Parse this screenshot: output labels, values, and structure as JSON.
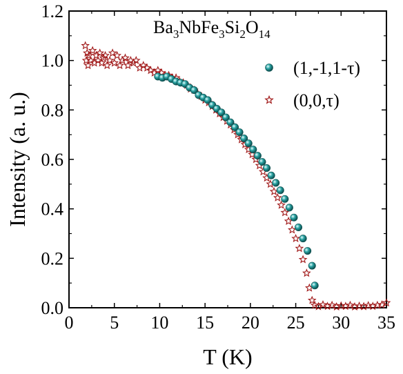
{
  "chart_data": {
    "type": "scatter",
    "title": "",
    "formula_parts": [
      {
        "text": "Ba",
        "sub": false
      },
      {
        "text": "3",
        "sub": true
      },
      {
        "text": "NbFe",
        "sub": false
      },
      {
        "text": "3",
        "sub": true
      },
      {
        "text": "Si",
        "sub": false
      },
      {
        "text": "2",
        "sub": true
      },
      {
        "text": "O",
        "sub": false
      },
      {
        "text": "14",
        "sub": true
      }
    ],
    "xlabel": "T (K)",
    "ylabel": "Intensity (a. u.)",
    "xlim": [
      0,
      35
    ],
    "ylim": [
      0,
      1.2
    ],
    "xticks": [
      0,
      5,
      10,
      15,
      20,
      25,
      30,
      35
    ],
    "xtick_labels": [
      "0",
      "5",
      "10",
      "15",
      "20",
      "25",
      "30",
      "35"
    ],
    "yticks": [
      0.0,
      0.2,
      0.4,
      0.6,
      0.8,
      1.0,
      1.2
    ],
    "ytick_labels": [
      "0.0",
      "0.2",
      "0.4",
      "0.6",
      "0.8",
      "1.0",
      "1.2"
    ],
    "grid": false,
    "legend_position": "top-right",
    "series": [
      {
        "name": "(1,-1,1-τ)",
        "marker": "circle",
        "color": "#1e8a8a",
        "points": [
          [
            9.8,
            0.935
          ],
          [
            10.3,
            0.93
          ],
          [
            10.8,
            0.935
          ],
          [
            11.3,
            0.925
          ],
          [
            11.8,
            0.915
          ],
          [
            12.3,
            0.91
          ],
          [
            12.8,
            0.905
          ],
          [
            13.3,
            0.89
          ],
          [
            13.8,
            0.88
          ],
          [
            14.3,
            0.86
          ],
          [
            14.8,
            0.85
          ],
          [
            15.3,
            0.84
          ],
          [
            15.8,
            0.82
          ],
          [
            16.3,
            0.805
          ],
          [
            16.8,
            0.79
          ],
          [
            17.3,
            0.77
          ],
          [
            17.8,
            0.75
          ],
          [
            18.3,
            0.73
          ],
          [
            18.8,
            0.71
          ],
          [
            19.3,
            0.685
          ],
          [
            19.8,
            0.665
          ],
          [
            20.3,
            0.64
          ],
          [
            20.8,
            0.615
          ],
          [
            21.3,
            0.59
          ],
          [
            21.8,
            0.565
          ],
          [
            22.3,
            0.535
          ],
          [
            22.8,
            0.505
          ],
          [
            23.3,
            0.475
          ],
          [
            23.8,
            0.44
          ],
          [
            24.3,
            0.405
          ],
          [
            24.8,
            0.365
          ],
          [
            25.3,
            0.325
          ],
          [
            25.8,
            0.28
          ],
          [
            26.3,
            0.23
          ],
          [
            26.8,
            0.17
          ],
          [
            27.1,
            0.09
          ]
        ]
      },
      {
        "name": "(0,0,τ)",
        "marker": "star",
        "color": "#a01818",
        "points": [
          [
            1.8,
            1.06
          ],
          [
            1.9,
            1.0
          ],
          [
            2.0,
            1.03
          ],
          [
            2.1,
            0.98
          ],
          [
            2.2,
            1.02
          ],
          [
            2.4,
            1.0
          ],
          [
            2.6,
            1.04
          ],
          [
            2.8,
            0.99
          ],
          [
            3.0,
            1.02
          ],
          [
            3.2,
            1.0
          ],
          [
            3.4,
            1.03
          ],
          [
            3.6,
            0.99
          ],
          [
            3.8,
            1.01
          ],
          [
            4.0,
            1.02
          ],
          [
            4.2,
            0.98
          ],
          [
            4.5,
            1.0
          ],
          [
            4.8,
            1.03
          ],
          [
            5.0,
            0.99
          ],
          [
            5.3,
            1.02
          ],
          [
            5.6,
            0.98
          ],
          [
            5.9,
            1.0
          ],
          [
            6.2,
            1.01
          ],
          [
            6.5,
            0.98
          ],
          [
            6.8,
            1.0
          ],
          [
            7.1,
            0.99
          ],
          [
            7.4,
            1.0
          ],
          [
            7.8,
            0.97
          ],
          [
            8.2,
            0.98
          ],
          [
            8.6,
            0.97
          ],
          [
            9.0,
            0.96
          ],
          [
            9.4,
            0.95
          ],
          [
            9.8,
            0.96
          ],
          [
            10.2,
            0.95
          ],
          [
            10.6,
            0.94
          ],
          [
            11.0,
            0.94
          ],
          [
            11.4,
            0.93
          ],
          [
            11.8,
            0.93
          ],
          [
            12.2,
            0.915
          ],
          [
            12.6,
            0.91
          ],
          [
            13.0,
            0.9
          ],
          [
            13.4,
            0.885
          ],
          [
            13.8,
            0.88
          ],
          [
            14.2,
            0.865
          ],
          [
            14.6,
            0.855
          ],
          [
            15.0,
            0.84
          ],
          [
            15.4,
            0.83
          ],
          [
            15.8,
            0.815
          ],
          [
            16.2,
            0.8
          ],
          [
            16.6,
            0.785
          ],
          [
            17.0,
            0.77
          ],
          [
            17.4,
            0.755
          ],
          [
            17.8,
            0.74
          ],
          [
            18.2,
            0.72
          ],
          [
            18.6,
            0.7
          ],
          [
            19.0,
            0.68
          ],
          [
            19.4,
            0.66
          ],
          [
            19.8,
            0.64
          ],
          [
            20.2,
            0.62
          ],
          [
            20.6,
            0.6
          ],
          [
            21.0,
            0.575
          ],
          [
            21.4,
            0.55
          ],
          [
            21.8,
            0.525
          ],
          [
            22.2,
            0.5
          ],
          [
            22.6,
            0.47
          ],
          [
            23.0,
            0.445
          ],
          [
            23.4,
            0.415
          ],
          [
            23.8,
            0.385
          ],
          [
            24.2,
            0.35
          ],
          [
            24.6,
            0.315
          ],
          [
            25.0,
            0.28
          ],
          [
            25.4,
            0.24
          ],
          [
            25.8,
            0.195
          ],
          [
            26.2,
            0.14
          ],
          [
            26.5,
            0.08
          ],
          [
            26.8,
            0.03
          ],
          [
            27.1,
            0.01
          ],
          [
            27.5,
            0.005
          ],
          [
            28.0,
            0.012
          ],
          [
            28.5,
            0.006
          ],
          [
            29.0,
            0.01
          ],
          [
            29.5,
            0.004
          ],
          [
            30.0,
            0.008
          ],
          [
            30.5,
            0.006
          ],
          [
            31.0,
            0.01
          ],
          [
            31.5,
            0.004
          ],
          [
            32.0,
            0.007
          ],
          [
            32.5,
            0.005
          ],
          [
            33.0,
            0.009
          ],
          [
            33.5,
            0.006
          ],
          [
            34.0,
            0.01
          ],
          [
            34.5,
            0.012
          ],
          [
            35.0,
            0.02
          ]
        ]
      }
    ]
  }
}
